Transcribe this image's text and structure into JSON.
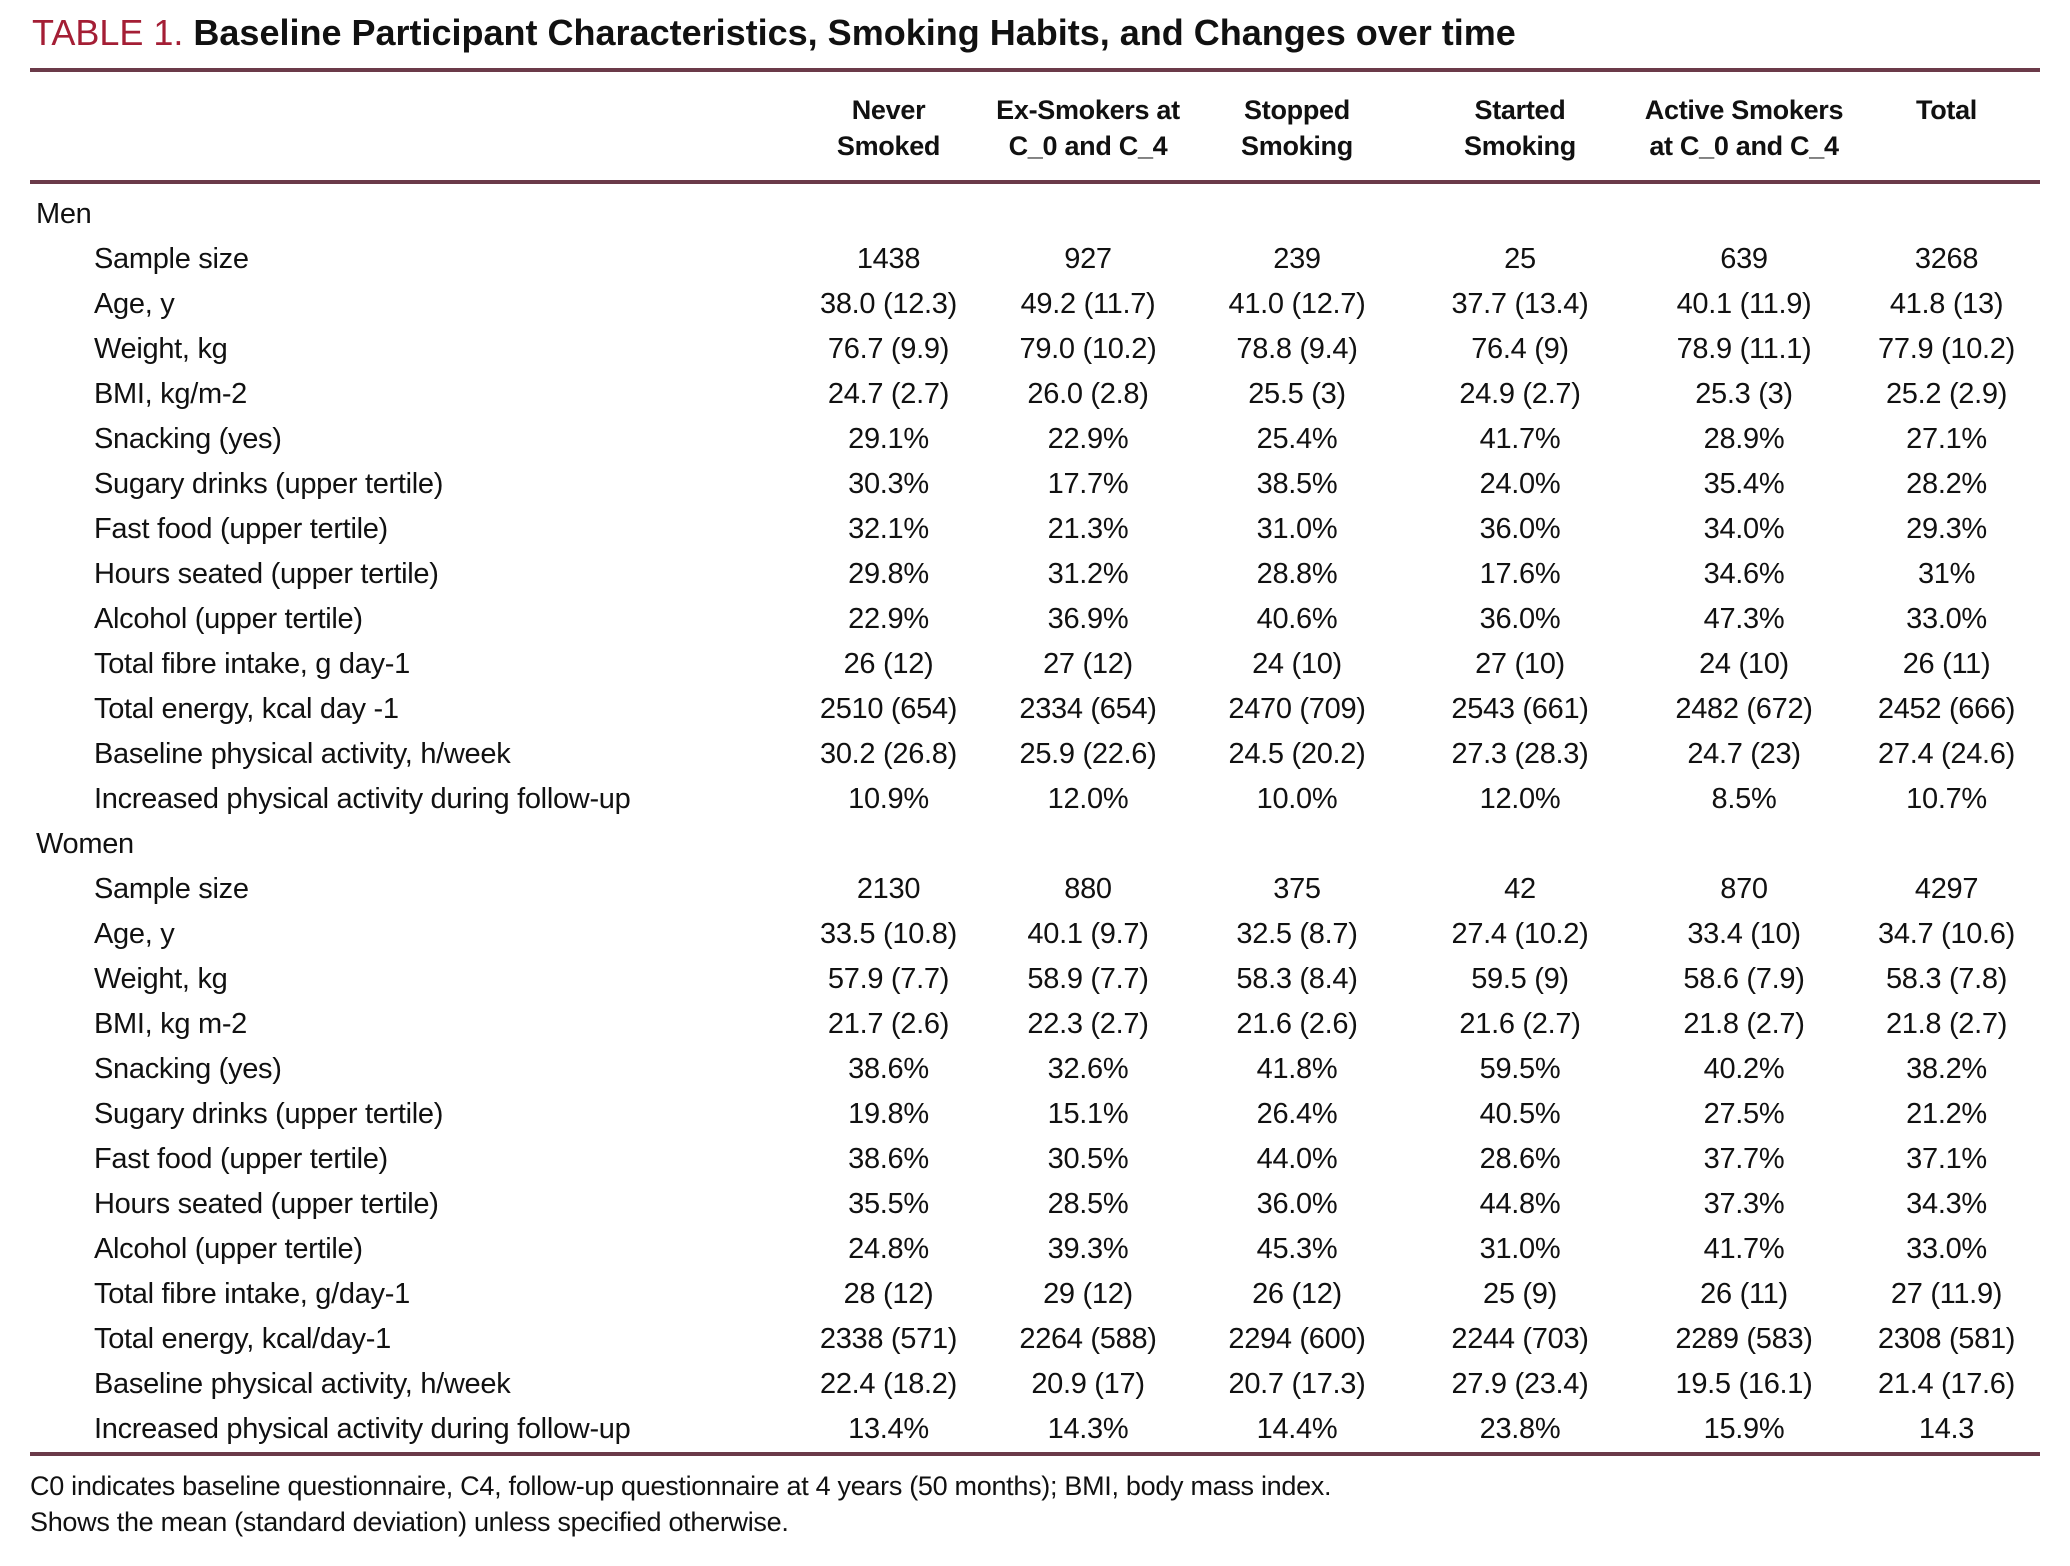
{
  "title": {
    "prefix": "TABLE 1.",
    "text": "Baseline Participant Characteristics, Smoking Habits, and Changes over time"
  },
  "colors": {
    "title_accent": "#a41e35",
    "rule": "#6b3a49",
    "text": "#111111",
    "background": "#ffffff"
  },
  "table": {
    "column_headers": [
      [
        "Never",
        "Smoked"
      ],
      [
        "Ex-Smokers at",
        "C_0 and C_4"
      ],
      [
        "Stopped",
        "Smoking"
      ],
      [
        "Started",
        "Smoking"
      ],
      [
        "Active Smokers",
        "at C_0 and C_4"
      ],
      [
        "Total",
        ""
      ]
    ],
    "sections": [
      {
        "label": "Men",
        "rows": [
          {
            "label": "Sample size",
            "values": [
              "1438",
              "927",
              "239",
              "25",
              "639",
              "3268"
            ]
          },
          {
            "label": "Age, y",
            "values": [
              "38.0 (12.3)",
              "49.2 (11.7)",
              "41.0 (12.7)",
              "37.7 (13.4)",
              "40.1 (11.9)",
              "41.8 (13)"
            ]
          },
          {
            "label": "Weight, kg",
            "values": [
              "76.7 (9.9)",
              "79.0 (10.2)",
              "78.8 (9.4)",
              "76.4 (9)",
              "78.9 (11.1)",
              "77.9 (10.2)"
            ]
          },
          {
            "label": "BMI, kg/m-2",
            "values": [
              "24.7 (2.7)",
              "26.0 (2.8)",
              "25.5 (3)",
              "24.9 (2.7)",
              "25.3 (3)",
              "25.2 (2.9)"
            ]
          },
          {
            "label": "Snacking (yes)",
            "values": [
              "29.1%",
              "22.9%",
              "25.4%",
              "41.7%",
              "28.9%",
              "27.1%"
            ]
          },
          {
            "label": "Sugary drinks (upper tertile)",
            "values": [
              "30.3%",
              "17.7%",
              "38.5%",
              "24.0%",
              "35.4%",
              "28.2%"
            ]
          },
          {
            "label": "Fast food (upper tertile)",
            "values": [
              "32.1%",
              "21.3%",
              "31.0%",
              "36.0%",
              "34.0%",
              "29.3%"
            ]
          },
          {
            "label": "Hours seated (upper tertile)",
            "values": [
              "29.8%",
              "31.2%",
              "28.8%",
              "17.6%",
              "34.6%",
              "31%"
            ]
          },
          {
            "label": "Alcohol (upper tertile)",
            "values": [
              "22.9%",
              "36.9%",
              "40.6%",
              "36.0%",
              "47.3%",
              "33.0%"
            ]
          },
          {
            "label": "Total fibre intake, g day-1",
            "values": [
              "26 (12)",
              "27 (12)",
              "24 (10)",
              "27 (10)",
              "24 (10)",
              "26 (11)"
            ]
          },
          {
            "label": "Total energy, kcal day -1",
            "values": [
              "2510 (654)",
              "2334 (654)",
              "2470 (709)",
              "2543 (661)",
              "2482 (672)",
              "2452 (666)"
            ]
          },
          {
            "label": "Baseline physical activity, h/week",
            "values": [
              "30.2 (26.8)",
              "25.9 (22.6)",
              "24.5 (20.2)",
              "27.3 (28.3)",
              "24.7 (23)",
              "27.4 (24.6)"
            ]
          },
          {
            "label": "Increased physical activity during follow-up",
            "values": [
              "10.9%",
              "12.0%",
              "10.0%",
              "12.0%",
              "8.5%",
              "10.7%"
            ]
          }
        ]
      },
      {
        "label": "Women",
        "rows": [
          {
            "label": "Sample size",
            "values": [
              "2130",
              "880",
              "375",
              "42",
              "870",
              "4297"
            ]
          },
          {
            "label": "Age, y",
            "values": [
              "33.5 (10.8)",
              "40.1 (9.7)",
              "32.5 (8.7)",
              "27.4 (10.2)",
              "33.4 (10)",
              "34.7 (10.6)"
            ]
          },
          {
            "label": "Weight, kg",
            "values": [
              "57.9 (7.7)",
              "58.9 (7.7)",
              "58.3 (8.4)",
              "59.5 (9)",
              "58.6 (7.9)",
              "58.3 (7.8)"
            ]
          },
          {
            "label": "BMI, kg m-2",
            "values": [
              "21.7 (2.6)",
              "22.3 (2.7)",
              "21.6 (2.6)",
              "21.6 (2.7)",
              "21.8 (2.7)",
              "21.8 (2.7)"
            ]
          },
          {
            "label": "Snacking (yes)",
            "values": [
              "38.6%",
              "32.6%",
              "41.8%",
              "59.5%",
              "40.2%",
              "38.2%"
            ]
          },
          {
            "label": "Sugary drinks (upper tertile)",
            "values": [
              "19.8%",
              "15.1%",
              "26.4%",
              "40.5%",
              "27.5%",
              "21.2%"
            ]
          },
          {
            "label": "Fast food (upper tertile)",
            "values": [
              "38.6%",
              "30.5%",
              "44.0%",
              "28.6%",
              "37.7%",
              "37.1%"
            ]
          },
          {
            "label": "Hours seated (upper tertile)",
            "values": [
              "35.5%",
              "28.5%",
              "36.0%",
              "44.8%",
              "37.3%",
              "34.3%"
            ]
          },
          {
            "label": "Alcohol (upper tertile)",
            "values": [
              "24.8%",
              "39.3%",
              "45.3%",
              "31.0%",
              "41.7%",
              "33.0%"
            ]
          },
          {
            "label": "Total fibre intake, g/day-1",
            "values": [
              "28 (12)",
              "29 (12)",
              "26 (12)",
              "25 (9)",
              "26 (11)",
              "27 (11.9)"
            ]
          },
          {
            "label": "Total energy, kcal/day-1",
            "values": [
              "2338 (571)",
              "2264 (588)",
              "2294 (600)",
              "2244 (703)",
              "2289 (583)",
              "2308 (581)"
            ]
          },
          {
            "label": "Baseline physical activity, h/week",
            "values": [
              "22.4 (18.2)",
              "20.9 (17)",
              "20.7 (17.3)",
              "27.9 (23.4)",
              "19.5 (16.1)",
              "21.4 (17.6)"
            ]
          },
          {
            "label": "Increased physical activity during follow-up",
            "values": [
              "13.4%",
              "14.3%",
              "14.4%",
              "23.8%",
              "15.9%",
              "14.3"
            ]
          }
        ]
      }
    ]
  },
  "footnotes": [
    "C0 indicates baseline questionnaire, C4, follow-up questionnaire at 4 years (50 months); BMI, body mass index.",
    "Shows the mean (standard deviation) unless specified otherwise."
  ]
}
